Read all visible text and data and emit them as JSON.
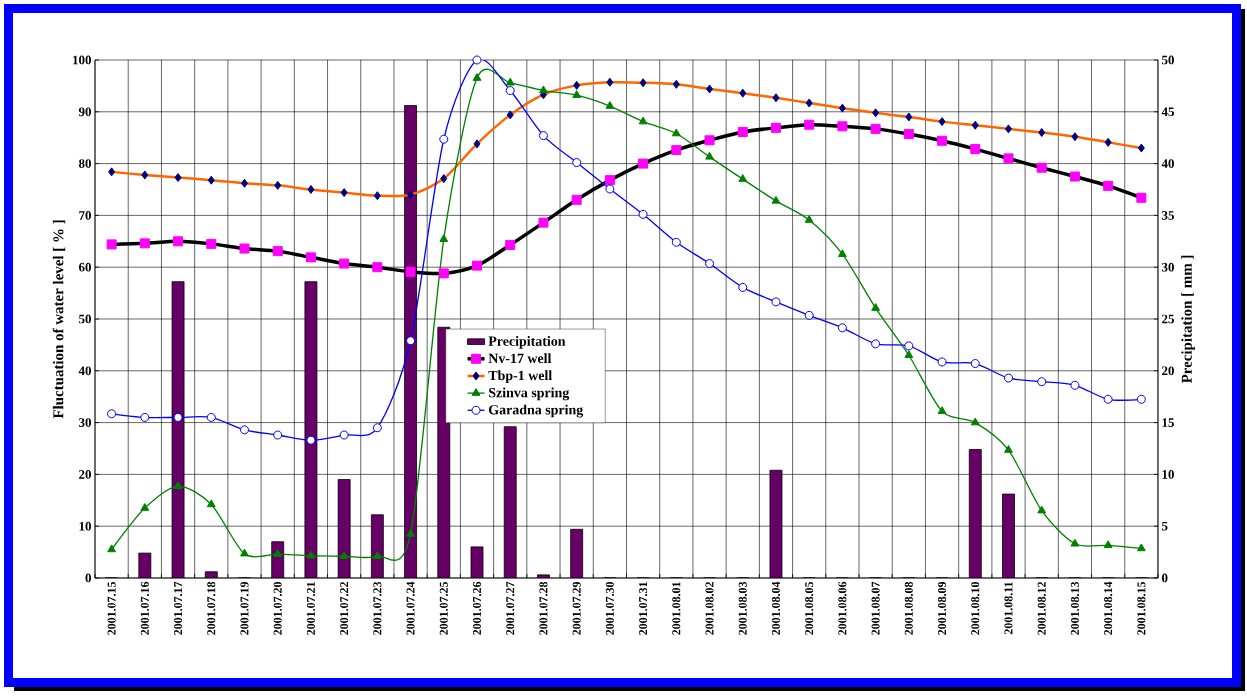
{
  "chart_data": {
    "type": "line",
    "ylabel": "Fluctuation of water level [ % ]",
    "y2label": "Precipitation [ mm ]",
    "categories": [
      "2001.07.15",
      "2001.07.16",
      "2001.07.17",
      "2001.07.18",
      "2001.07.19",
      "2001.07.20",
      "2001.07.21",
      "2001.07.22",
      "2001.07.23",
      "2001.07.24",
      "2001.07.25",
      "2001.07.26",
      "2001.07.27",
      "2001.07.28",
      "2001.07.29",
      "2001.07.30",
      "2001.07.31",
      "2001.08.01",
      "2001.08.02",
      "2001.08.03",
      "2001.08.04",
      "2001.08.05",
      "2001.08.06",
      "2001.08.07",
      "2001.08.08",
      "2001.08.09",
      "2001.08.10",
      "2001.08.11",
      "2001.08.12",
      "2001.08.13",
      "2001.08.14",
      "2001.08.15"
    ],
    "series": [
      {
        "name": "Precipitation",
        "type": "bar",
        "axis": "y2",
        "color": "#660066",
        "values": [
          0,
          2.4,
          28.6,
          0.6,
          0,
          3.5,
          28.6,
          9.5,
          6.1,
          45.6,
          24.2,
          3.0,
          14.6,
          0.3,
          4.7,
          0,
          0,
          0,
          0,
          0,
          10.4,
          0,
          0,
          0,
          0,
          0,
          12.4,
          8.1,
          0,
          0,
          0,
          0
        ]
      },
      {
        "name": "Nv-17 well",
        "marker": "square",
        "color": "#000000",
        "values": [
          64.4,
          64.6,
          65.0,
          64.5,
          63.6,
          63.1,
          61.9,
          60.7,
          60.0,
          59.1,
          58.8,
          60.3,
          64.3,
          68.6,
          73.0,
          76.8,
          80.0,
          82.6,
          84.5,
          86.1,
          86.9,
          87.5,
          87.2,
          86.7,
          85.7,
          84.4,
          82.8,
          81.0,
          79.2,
          77.5,
          75.7,
          73.4
        ]
      },
      {
        "name": "Tbp-1 well",
        "marker": "diamond",
        "color": "#ff6600",
        "values": [
          78.4,
          77.8,
          77.3,
          76.8,
          76.2,
          75.8,
          75.0,
          74.4,
          73.8,
          74.0,
          77.1,
          83.8,
          89.4,
          93.3,
          95.1,
          95.7,
          95.6,
          95.3,
          94.4,
          93.6,
          92.7,
          91.7,
          90.7,
          89.8,
          89.0,
          88.1,
          87.4,
          86.7,
          86.0,
          85.2,
          84.1,
          83.0
        ]
      },
      {
        "name": "Szinva  spring",
        "marker": "triangle",
        "color": "#008000",
        "values": [
          5.5,
          13.5,
          17.7,
          14.2,
          4.7,
          4.6,
          4.3,
          4.2,
          4.2,
          8.5,
          65.4,
          96.5,
          95.6,
          94.1,
          93.2,
          91.1,
          88.1,
          85.8,
          81.3,
          77.0,
          72.8,
          69.1,
          62.5,
          52.1,
          43.0,
          32.2,
          30.0,
          24.7,
          13.0,
          6.6,
          6.3,
          5.7
        ]
      },
      {
        "name": "Garadna  spring",
        "marker": "circle",
        "color": "#0000ff",
        "values": [
          31.7,
          31.0,
          31.0,
          31.0,
          28.6,
          27.6,
          26.6,
          27.6,
          29.0,
          45.8,
          84.7,
          100,
          94.1,
          85.4,
          80.2,
          75.1,
          70.2,
          64.8,
          60.7,
          56.1,
          53.3,
          50.7,
          48.3,
          45.2,
          44.8,
          41.7,
          41.4,
          38.6,
          37.9,
          37.2,
          34.5,
          34.5
        ]
      }
    ],
    "ylim": [
      0,
      100
    ],
    "yticks": [
      0,
      10,
      20,
      30,
      40,
      50,
      60,
      70,
      80,
      90,
      100
    ],
    "y2lim": [
      0,
      50
    ],
    "y2ticks": [
      0,
      5,
      10,
      15,
      20,
      25,
      30,
      35,
      40,
      45,
      50
    ],
    "grid": true,
    "legend": "center"
  }
}
